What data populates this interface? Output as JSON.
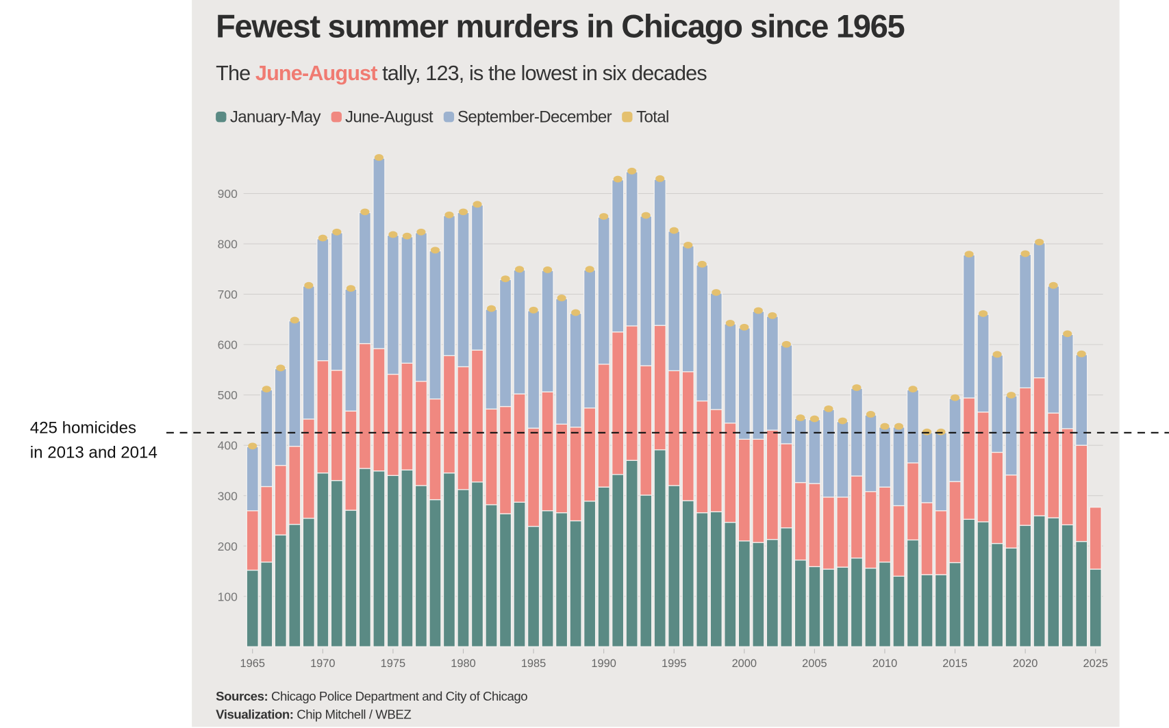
{
  "title": "Fewest summer murders in Chicago since 1965",
  "subtitle": {
    "pre": "The ",
    "highlight": "June-August",
    "post": " tally, 123, is the lowest in six decades"
  },
  "legend": [
    {
      "label": "January-May",
      "color": "#5a8a84"
    },
    {
      "label": "June-August",
      "color": "#f08880"
    },
    {
      "label": "September-December",
      "color": "#9cb2cf"
    },
    {
      "label": "Total",
      "color": "#e4c06e"
    }
  ],
  "annotation": {
    "line1": "425 homicides",
    "line2": "in 2013 and 2014",
    "value": 425
  },
  "footer": {
    "sources_label": "Sources:",
    "sources": " Chicago Police Department and City of Chicago",
    "viz_label": "Visualization:",
    "viz": " Chip Mitchell / WBEZ"
  },
  "chart_data": {
    "type": "bar",
    "stacked": true,
    "title": "Fewest summer murders in Chicago since 1965",
    "xlabel": "",
    "ylabel": "",
    "ylim": [
      0,
      980
    ],
    "yticks": [
      100,
      200,
      300,
      400,
      500,
      600,
      700,
      800,
      900
    ],
    "xticks": [
      1965,
      1970,
      1975,
      1980,
      1985,
      1990,
      1995,
      2000,
      2005,
      2010,
      2015,
      2020,
      2025
    ],
    "grid": true,
    "legend_position": "top-left",
    "x": [
      1965,
      1966,
      1967,
      1968,
      1969,
      1970,
      1971,
      1972,
      1973,
      1974,
      1975,
      1976,
      1977,
      1978,
      1979,
      1980,
      1981,
      1982,
      1983,
      1984,
      1985,
      1986,
      1987,
      1988,
      1989,
      1990,
      1991,
      1992,
      1993,
      1994,
      1995,
      1996,
      1997,
      1998,
      1999,
      2000,
      2001,
      2002,
      2003,
      2004,
      2005,
      2006,
      2007,
      2008,
      2009,
      2010,
      2011,
      2012,
      2013,
      2014,
      2015,
      2016,
      2017,
      2018,
      2019,
      2020,
      2021,
      2022,
      2023,
      2024,
      2025
    ],
    "series": [
      {
        "name": "January-May",
        "values": [
          152,
          168,
          222,
          243,
          255,
          345,
          330,
          271,
          354,
          349,
          340,
          351,
          320,
          292,
          345,
          312,
          327,
          282,
          264,
          287,
          239,
          270,
          266,
          250,
          289,
          317,
          342,
          370,
          301,
          391,
          320,
          290,
          266,
          268,
          247,
          210,
          207,
          213,
          236,
          172,
          159,
          154,
          158,
          176,
          156,
          168,
          140,
          212,
          143,
          143,
          167,
          253,
          248,
          205,
          196,
          241,
          260,
          256,
          242,
          209,
          154
        ]
      },
      {
        "name": "June-August",
        "values": [
          118,
          150,
          138,
          155,
          197,
          223,
          219,
          197,
          248,
          243,
          201,
          212,
          207,
          200,
          233,
          244,
          262,
          190,
          213,
          215,
          195,
          236,
          176,
          186,
          185,
          244,
          283,
          267,
          257,
          247,
          228,
          256,
          222,
          203,
          197,
          202,
          205,
          217,
          167,
          154,
          165,
          143,
          139,
          163,
          152,
          149,
          140,
          153,
          143,
          127,
          161,
          241,
          218,
          181,
          145,
          273,
          274,
          208,
          191,
          191,
          123
        ]
      },
      {
        "name": "September-December",
        "values": [
          127,
          192,
          192,
          249,
          264,
          242,
          273,
          242,
          260,
          378,
          276,
          251,
          295,
          294,
          278,
          306,
          288,
          198,
          252,
          246,
          233,
          241,
          249,
          226,
          274,
          292,
          302,
          306,
          297,
          290,
          277,
          250,
          270,
          231,
          197,
          221,
          254,
          226,
          196,
          127,
          127,
          174,
          150,
          174,
          152,
          119,
          156,
          145,
          139,
          155,
          165,
          284,
          194,
          193,
          157,
          265,
          268,
          252,
          187,
          180,
          null
        ]
      },
      {
        "name": "Total",
        "values": [
          397,
          510,
          552,
          647,
          716,
          810,
          822,
          710,
          862,
          970,
          817,
          814,
          822,
          786,
          856,
          862,
          877,
          670,
          729,
          748,
          667,
          747,
          691,
          662,
          748,
          853,
          927,
          943,
          855,
          928,
          825,
          796,
          758,
          702,
          641,
          633,
          666,
          656,
          599,
          453,
          451,
          471,
          447,
          513,
          460,
          436,
          436,
          510,
          425,
          425,
          493,
          778,
          660,
          579,
          498,
          779,
          802,
          716,
          620,
          580,
          null
        ]
      }
    ]
  }
}
